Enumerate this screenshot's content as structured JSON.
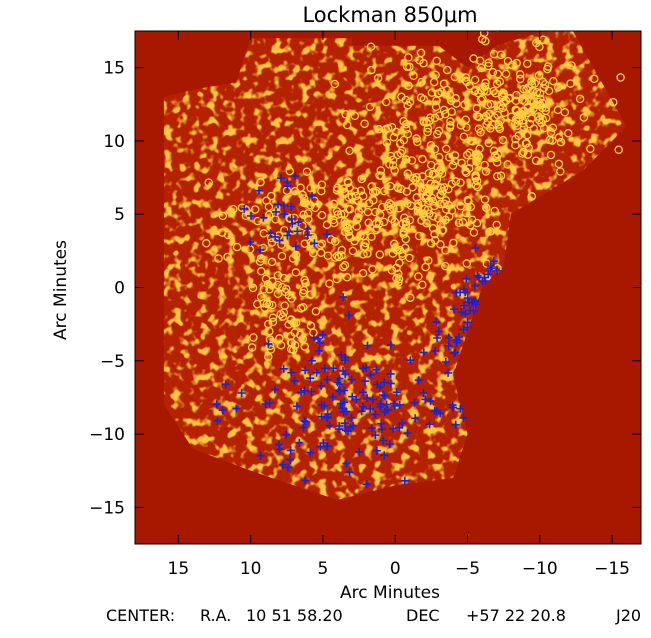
{
  "chart_data": {
    "type": "scatter",
    "title": "Lockman 850μm",
    "xlabel": "Arc Minutes",
    "ylabel": "Arc Minutes",
    "xlim": [
      18.0,
      -17.0
    ],
    "ylim": [
      -17.5,
      17.5
    ],
    "x_ticks": [
      15,
      10,
      5,
      0,
      -5,
      -10,
      -15
    ],
    "y_ticks": [
      15,
      10,
      5,
      0,
      -5,
      -10,
      -15
    ],
    "x_tick_labels": [
      "15",
      "10",
      "5",
      "0",
      "−5",
      "−10",
      "−15"
    ],
    "y_tick_labels": [
      "15",
      "10",
      "5",
      "0",
      "−5",
      "−10",
      "−15"
    ],
    "grid": false,
    "legend": false,
    "background_image": "SCUBA 850μm signal-to-noise map (dark red background, orange/yellow mottled map region)",
    "map_region_polygon": [
      [
        10,
        17
      ],
      [
        3,
        17
      ],
      [
        3,
        16.5
      ],
      [
        -3,
        16.5
      ],
      [
        -5,
        15
      ],
      [
        -7,
        16.5
      ],
      [
        -12,
        18
      ],
      [
        -16,
        11
      ],
      [
        -13,
        8
      ],
      [
        -8,
        5
      ],
      [
        -7.5,
        1.5
      ],
      [
        -6,
        0
      ],
      [
        -5,
        -3
      ],
      [
        -4,
        -6
      ],
      [
        -5,
        -10
      ],
      [
        -4,
        -13
      ],
      [
        0,
        -13.5
      ],
      [
        4,
        -14.5
      ],
      [
        7,
        -13.5
      ],
      [
        10,
        -12.5
      ],
      [
        14,
        -11
      ],
      [
        16,
        -8
      ],
      [
        16,
        13
      ],
      [
        14,
        13.5
      ],
      [
        11,
        14
      ]
    ],
    "series": [
      {
        "marker": "circle",
        "color": "#ffd040",
        "clusters": [
          {
            "center": [
              -5,
              12
            ],
            "spread": [
              8,
              5
            ],
            "count": 230
          },
          {
            "center": [
              -9,
              12
            ],
            "spread": [
              3,
              3
            ],
            "count": 60
          },
          {
            "center": [
              3,
              4
            ],
            "spread": [
              8,
              4
            ],
            "count": 230
          },
          {
            "center": [
              8,
              -2
            ],
            "spread": [
              2.5,
              3.5
            ],
            "count": 60
          },
          {
            "center": [
              -3,
              6.5
            ],
            "spread": [
              4,
              3
            ],
            "count": 80
          }
        ]
      },
      {
        "marker": "plus",
        "color": "#1a22d8",
        "clusters": [
          {
            "center": [
              3,
              -8
            ],
            "spread": [
              9,
              5
            ],
            "count": 150
          },
          {
            "center": [
              -7,
              -3.5
            ],
            "spread": [
              3,
              5
            ],
            "count": 45
          },
          {
            "center": [
              8,
              5
            ],
            "spread": [
              3,
              3
            ],
            "count": 30
          }
        ]
      }
    ]
  },
  "footer": {
    "center_label": "CENTER:",
    "ra_label": "R.A.",
    "ra_value": "10 51 58.20",
    "dec_label": "DEC",
    "dec_value": "+57 22 20.8",
    "epoch": "J20"
  },
  "colors": {
    "background": "#a81800",
    "map_base": "#b52200",
    "map_mid": "#d84800",
    "map_hot": "#ffa020",
    "circle": "#ffd040",
    "plus": "#1a22d8"
  }
}
